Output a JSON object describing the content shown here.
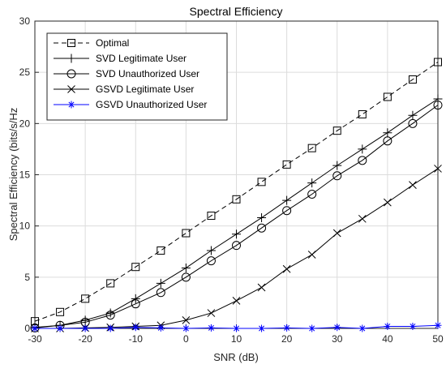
{
  "chart_data": {
    "type": "line",
    "title": "Spectral Efficiency",
    "xlabel": "SNR (dB)",
    "ylabel": "Spectral Efficiency (bits/s/Hz",
    "xlim": [
      -30,
      50
    ],
    "ylim": [
      0,
      30
    ],
    "xticks": [
      -30,
      -20,
      -10,
      0,
      10,
      20,
      30,
      40,
      50
    ],
    "yticks": [
      0,
      5,
      10,
      15,
      20,
      25,
      30
    ],
    "grid": true,
    "legend_position": "top-left",
    "x": [
      -30,
      -25,
      -20,
      -15,
      -10,
      -5,
      0,
      5,
      10,
      15,
      20,
      25,
      30,
      35,
      40,
      45,
      50
    ],
    "series": [
      {
        "name": "Optimal",
        "marker": "square",
        "line": "dashed",
        "color": "#000000",
        "values": [
          0.7,
          1.6,
          2.9,
          4.4,
          6.0,
          7.6,
          9.3,
          11.0,
          12.6,
          14.3,
          16.0,
          17.6,
          19.3,
          20.9,
          22.6,
          24.3,
          26.0
        ]
      },
      {
        "name": "SVD Legitimate User",
        "marker": "plus",
        "line": "solid",
        "color": "#000000",
        "values": [
          0.1,
          0.3,
          0.8,
          1.5,
          2.9,
          4.4,
          5.9,
          7.6,
          9.2,
          10.8,
          12.5,
          14.2,
          15.9,
          17.5,
          19.1,
          20.8,
          22.4
        ]
      },
      {
        "name": "SVD Unauthorized User",
        "marker": "circle",
        "line": "solid",
        "color": "#000000",
        "values": [
          0.05,
          0.3,
          0.6,
          1.3,
          2.4,
          3.5,
          5.0,
          6.6,
          8.1,
          9.8,
          11.5,
          13.1,
          14.9,
          16.4,
          18.3,
          20.0,
          21.8
        ]
      },
      {
        "name": "GSVD Legitimate User",
        "marker": "x",
        "line": "solid",
        "color": "#000000",
        "values": [
          0.0,
          0.0,
          0.05,
          0.1,
          0.2,
          0.3,
          0.8,
          1.5,
          2.7,
          4.0,
          5.8,
          7.2,
          9.3,
          10.7,
          12.3,
          14.0,
          15.6
        ]
      },
      {
        "name": "GSVD Unauthorized User",
        "marker": "asterisk",
        "line": "solid",
        "color": "#0000ff",
        "values": [
          0.0,
          0.0,
          0.0,
          0.0,
          0.1,
          0.05,
          0.0,
          0.05,
          0.0,
          0.0,
          0.05,
          0.0,
          0.1,
          0.0,
          0.2,
          0.2,
          0.3
        ]
      }
    ]
  }
}
